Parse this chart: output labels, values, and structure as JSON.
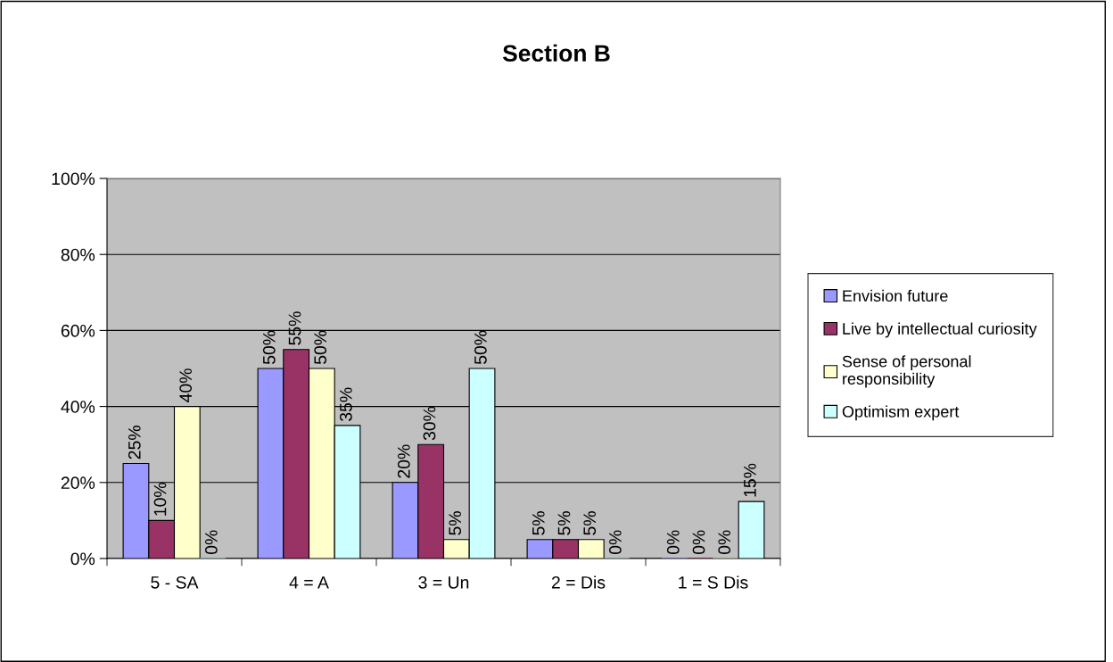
{
  "chart_data": {
    "type": "bar",
    "title": "Section B",
    "categories": [
      "5 - SA",
      "4 = A",
      "3 = Un",
      "2 = Dis",
      "1 = S Dis"
    ],
    "series": [
      {
        "name": "Envision future",
        "color": "#9999ff",
        "values": [
          25,
          50,
          20,
          5,
          0
        ],
        "value_labels": [
          "25%",
          "50%",
          "20%",
          "5%",
          "0%"
        ]
      },
      {
        "name": "Live by intellectual curiosity",
        "color": "#993366",
        "values": [
          10,
          55,
          30,
          5,
          0
        ],
        "value_labels": [
          "10%",
          "55%",
          "30%",
          "5%",
          "0%"
        ]
      },
      {
        "name": "Sense of personal responsibility",
        "color": "#ffffcc",
        "values": [
          40,
          50,
          5,
          5,
          0
        ],
        "value_labels": [
          "40%",
          "50%",
          "5%",
          "5%",
          "0%"
        ]
      },
      {
        "name": "Optimism expert",
        "color": "#ccffff",
        "values": [
          0,
          35,
          50,
          0,
          15
        ],
        "value_labels": [
          "0%",
          "35%",
          "50%",
          "0%",
          "15%"
        ]
      }
    ],
    "ylim": [
      0,
      100
    ],
    "yticks": [
      {
        "value": 0,
        "label": "0%"
      },
      {
        "value": 20,
        "label": "20%"
      },
      {
        "value": 40,
        "label": "40%"
      },
      {
        "value": 60,
        "label": "60%"
      },
      {
        "value": 80,
        "label": "80%"
      },
      {
        "value": 100,
        "label": "100%"
      }
    ],
    "grid": "y",
    "legend": "right"
  }
}
